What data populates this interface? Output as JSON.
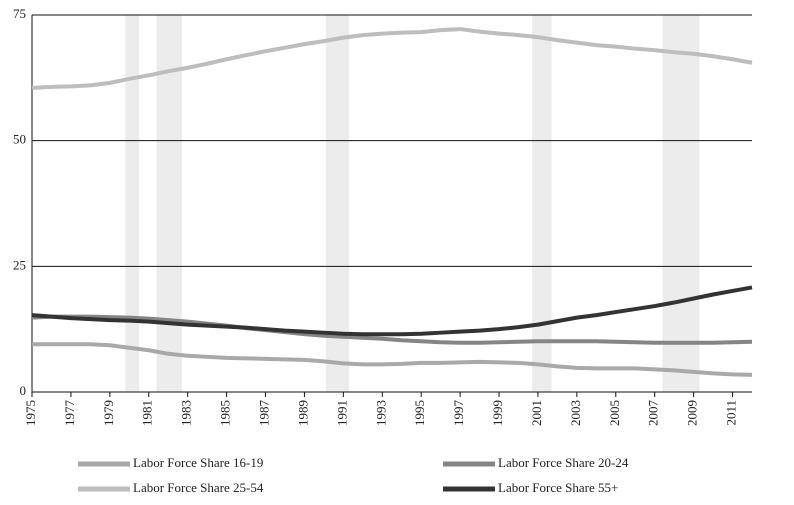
{
  "chart_data": {
    "type": "line",
    "x": [
      1975,
      1976,
      1977,
      1978,
      1979,
      1980,
      1981,
      1982,
      1983,
      1984,
      1985,
      1986,
      1987,
      1988,
      1989,
      1990,
      1991,
      1992,
      1993,
      1994,
      1995,
      1996,
      1997,
      1998,
      1999,
      2000,
      2001,
      2002,
      2003,
      2004,
      2005,
      2006,
      2007,
      2008,
      2009,
      2010,
      2011,
      2012
    ],
    "series": [
      {
        "name": "Labor Force Share 16-19",
        "color": "#a9a9a9",
        "values": [
          9.5,
          9.5,
          9.5,
          9.5,
          9.3,
          8.8,
          8.3,
          7.6,
          7.2,
          7.0,
          6.8,
          6.7,
          6.6,
          6.5,
          6.4,
          6.1,
          5.7,
          5.5,
          5.5,
          5.6,
          5.8,
          5.8,
          5.9,
          6.0,
          5.9,
          5.8,
          5.5,
          5.1,
          4.8,
          4.7,
          4.7,
          4.7,
          4.5,
          4.3,
          4.0,
          3.7,
          3.5,
          3.4
        ]
      },
      {
        "name": "Labor Force Share 20-24",
        "color": "#858585",
        "values": [
          14.8,
          15.0,
          15.0,
          15.0,
          14.9,
          14.8,
          14.6,
          14.3,
          14.0,
          13.6,
          13.2,
          12.7,
          12.3,
          11.9,
          11.5,
          11.2,
          11.0,
          10.8,
          10.6,
          10.3,
          10.1,
          9.9,
          9.8,
          9.8,
          9.9,
          10.0,
          10.1,
          10.1,
          10.1,
          10.1,
          10.0,
          9.9,
          9.8,
          9.8,
          9.8,
          9.8,
          9.9,
          10.0
        ]
      },
      {
        "name": "Labor Force Share 25-54",
        "color": "#bdbdbd",
        "values": [
          60.5,
          60.7,
          60.8,
          61.0,
          61.5,
          62.3,
          63.0,
          63.8,
          64.5,
          65.3,
          66.2,
          67.0,
          67.8,
          68.5,
          69.2,
          69.8,
          70.5,
          71.0,
          71.3,
          71.5,
          71.6,
          72.0,
          72.2,
          71.7,
          71.3,
          71.0,
          70.6,
          70.0,
          69.5,
          69.0,
          68.7,
          68.3,
          68.0,
          67.6,
          67.3,
          66.8,
          66.2,
          65.5
        ]
      },
      {
        "name": "Labor Force Share 55+",
        "color": "#333333",
        "values": [
          15.3,
          15.0,
          14.7,
          14.5,
          14.3,
          14.2,
          14.0,
          13.7,
          13.4,
          13.2,
          13.0,
          12.8,
          12.5,
          12.2,
          12.0,
          11.8,
          11.6,
          11.5,
          11.5,
          11.5,
          11.6,
          11.8,
          12.0,
          12.2,
          12.5,
          12.9,
          13.4,
          14.1,
          14.8,
          15.3,
          15.9,
          16.5,
          17.1,
          17.8,
          18.6,
          19.4,
          20.1,
          20.8
        ]
      }
    ],
    "shaded_regions": [
      [
        1979.8,
        1980.5
      ],
      [
        1981.4,
        1982.7
      ],
      [
        1990.1,
        1991.3
      ],
      [
        2000.7,
        2001.7
      ],
      [
        2007.4,
        2009.3
      ]
    ],
    "shade_color": "#ececec",
    "xlim": [
      1975,
      2012
    ],
    "xticks": [
      1975,
      1977,
      1979,
      1981,
      1983,
      1985,
      1987,
      1989,
      1991,
      1993,
      1995,
      1997,
      1999,
      2001,
      2003,
      2005,
      2007,
      2009,
      2011
    ],
    "ylim": [
      0,
      75
    ],
    "yticks": [
      0,
      25,
      50,
      75
    ],
    "grid": true
  }
}
